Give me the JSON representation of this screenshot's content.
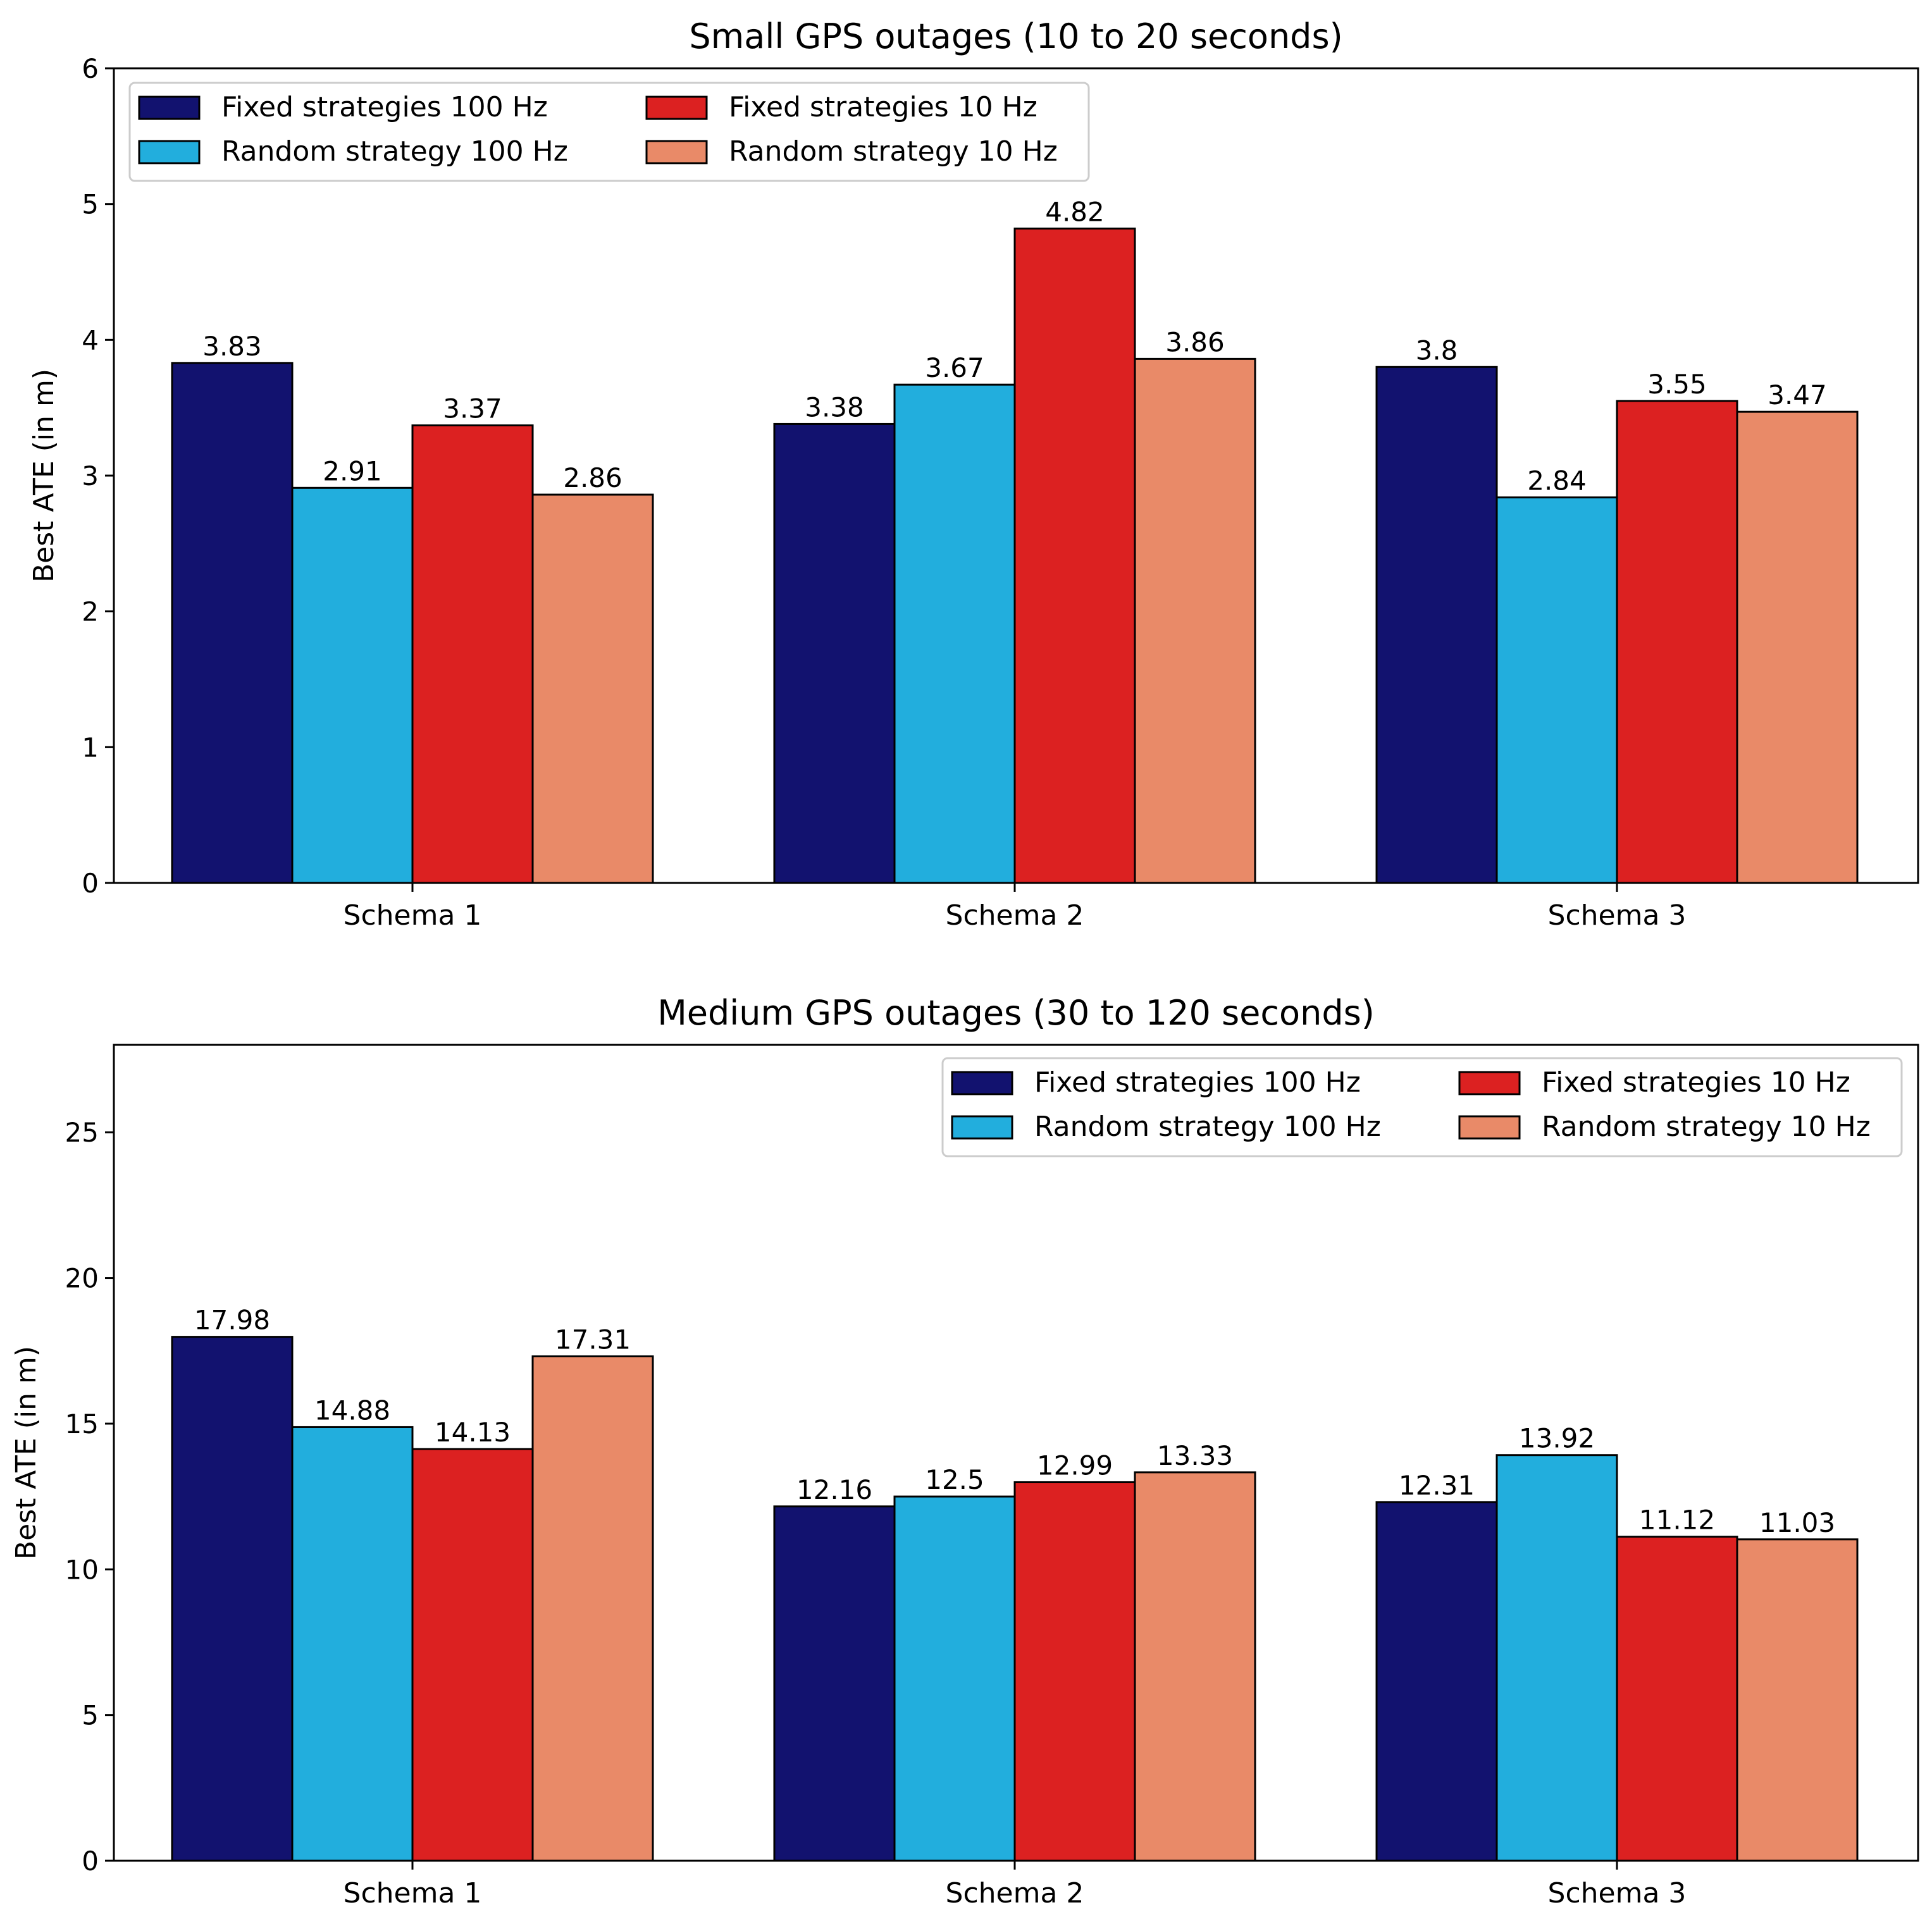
{
  "colors": {
    "fixed_100": "#12126f",
    "random_100": "#22aedd",
    "fixed_10": "#dc2121",
    "random_10": "#e98a68"
  },
  "chart_data": [
    {
      "type": "bar",
      "title": "Small GPS outages (10 to 20 seconds)",
      "xlabel": "",
      "ylabel": "Best ATE (in m)",
      "categories": [
        "Schema 1",
        "Schema 2",
        "Schema 3"
      ],
      "ylim": [
        0,
        6
      ],
      "yticks": [
        0,
        1,
        2,
        3,
        4,
        5,
        6
      ],
      "legend_position": "top-left",
      "series": [
        {
          "name": "Fixed strategies 100 Hz",
          "color_key": "fixed_100",
          "values": [
            3.83,
            3.38,
            3.8
          ],
          "labels": [
            "3.83",
            "3.38",
            "3.8"
          ]
        },
        {
          "name": "Random strategy 100 Hz",
          "color_key": "random_100",
          "values": [
            2.91,
            3.67,
            2.84
          ],
          "labels": [
            "2.91",
            "3.67",
            "2.84"
          ]
        },
        {
          "name": "Fixed strategies 10 Hz",
          "color_key": "fixed_10",
          "values": [
            3.37,
            4.82,
            3.55
          ],
          "labels": [
            "3.37",
            "4.82",
            "3.55"
          ]
        },
        {
          "name": "Random strategy 10 Hz",
          "color_key": "random_10",
          "values": [
            2.86,
            3.86,
            3.47
          ],
          "labels": [
            "2.86",
            "3.86",
            "3.47"
          ]
        }
      ]
    },
    {
      "type": "bar",
      "title": "Medium GPS outages (30 to 120 seconds)",
      "xlabel": "",
      "ylabel": "Best ATE (in m)",
      "categories": [
        "Schema 1",
        "Schema 2",
        "Schema 3"
      ],
      "ylim": [
        0,
        28
      ],
      "yticks": [
        0,
        5,
        10,
        15,
        20,
        25
      ],
      "legend_position": "top-right",
      "series": [
        {
          "name": "Fixed strategies 100 Hz",
          "color_key": "fixed_100",
          "values": [
            17.98,
            12.16,
            12.31
          ],
          "labels": [
            "17.98",
            "12.16",
            "12.31"
          ]
        },
        {
          "name": "Random strategy 100 Hz",
          "color_key": "random_100",
          "values": [
            14.88,
            12.5,
            13.92
          ],
          "labels": [
            "14.88",
            "12.5",
            "13.92"
          ]
        },
        {
          "name": "Fixed strategies 10 Hz",
          "color_key": "fixed_10",
          "values": [
            14.13,
            12.99,
            11.12
          ],
          "labels": [
            "14.13",
            "12.99",
            "11.12"
          ]
        },
        {
          "name": "Random strategy 10 Hz",
          "color_key": "random_10",
          "values": [
            17.31,
            13.33,
            11.03
          ],
          "labels": [
            "17.31",
            "13.33",
            "11.03"
          ]
        }
      ]
    }
  ]
}
